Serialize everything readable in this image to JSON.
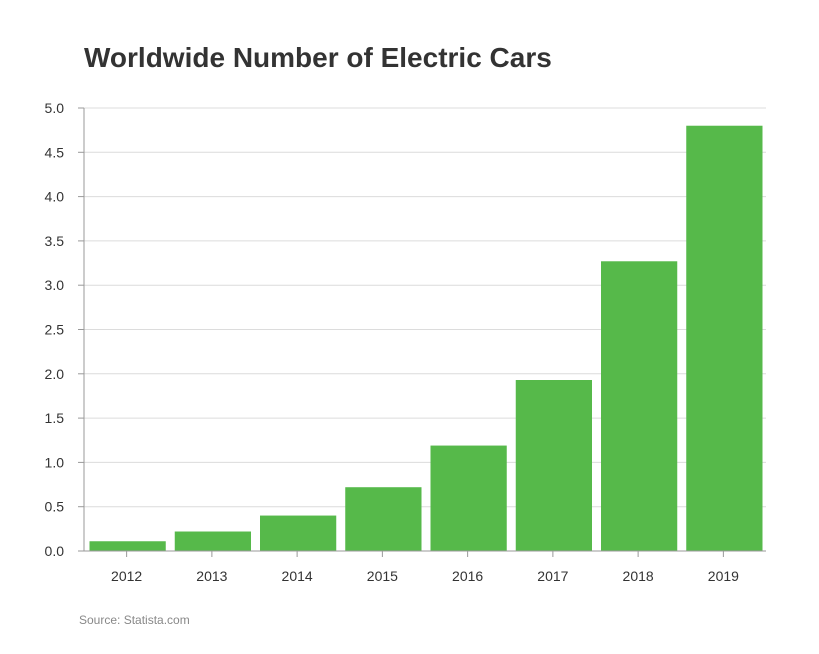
{
  "chart_data": {
    "type": "bar",
    "title": "Worldwide Number of Electric Cars",
    "categories": [
      "2012",
      "2013",
      "2014",
      "2015",
      "2016",
      "2017",
      "2018",
      "2019"
    ],
    "values": [
      0.11,
      0.22,
      0.4,
      0.72,
      1.19,
      1.93,
      3.27,
      4.8
    ],
    "ylim": [
      0,
      5
    ],
    "yticks": [
      "0.0",
      "0.5",
      "1.0",
      "1.5",
      "2.0",
      "2.5",
      "3.0",
      "3.5",
      "4.0",
      "4.5",
      "5.0"
    ],
    "grid": true,
    "bar_color": "#56b94a",
    "xlabel": "",
    "ylabel": ""
  },
  "source": "Source: Statista.com"
}
